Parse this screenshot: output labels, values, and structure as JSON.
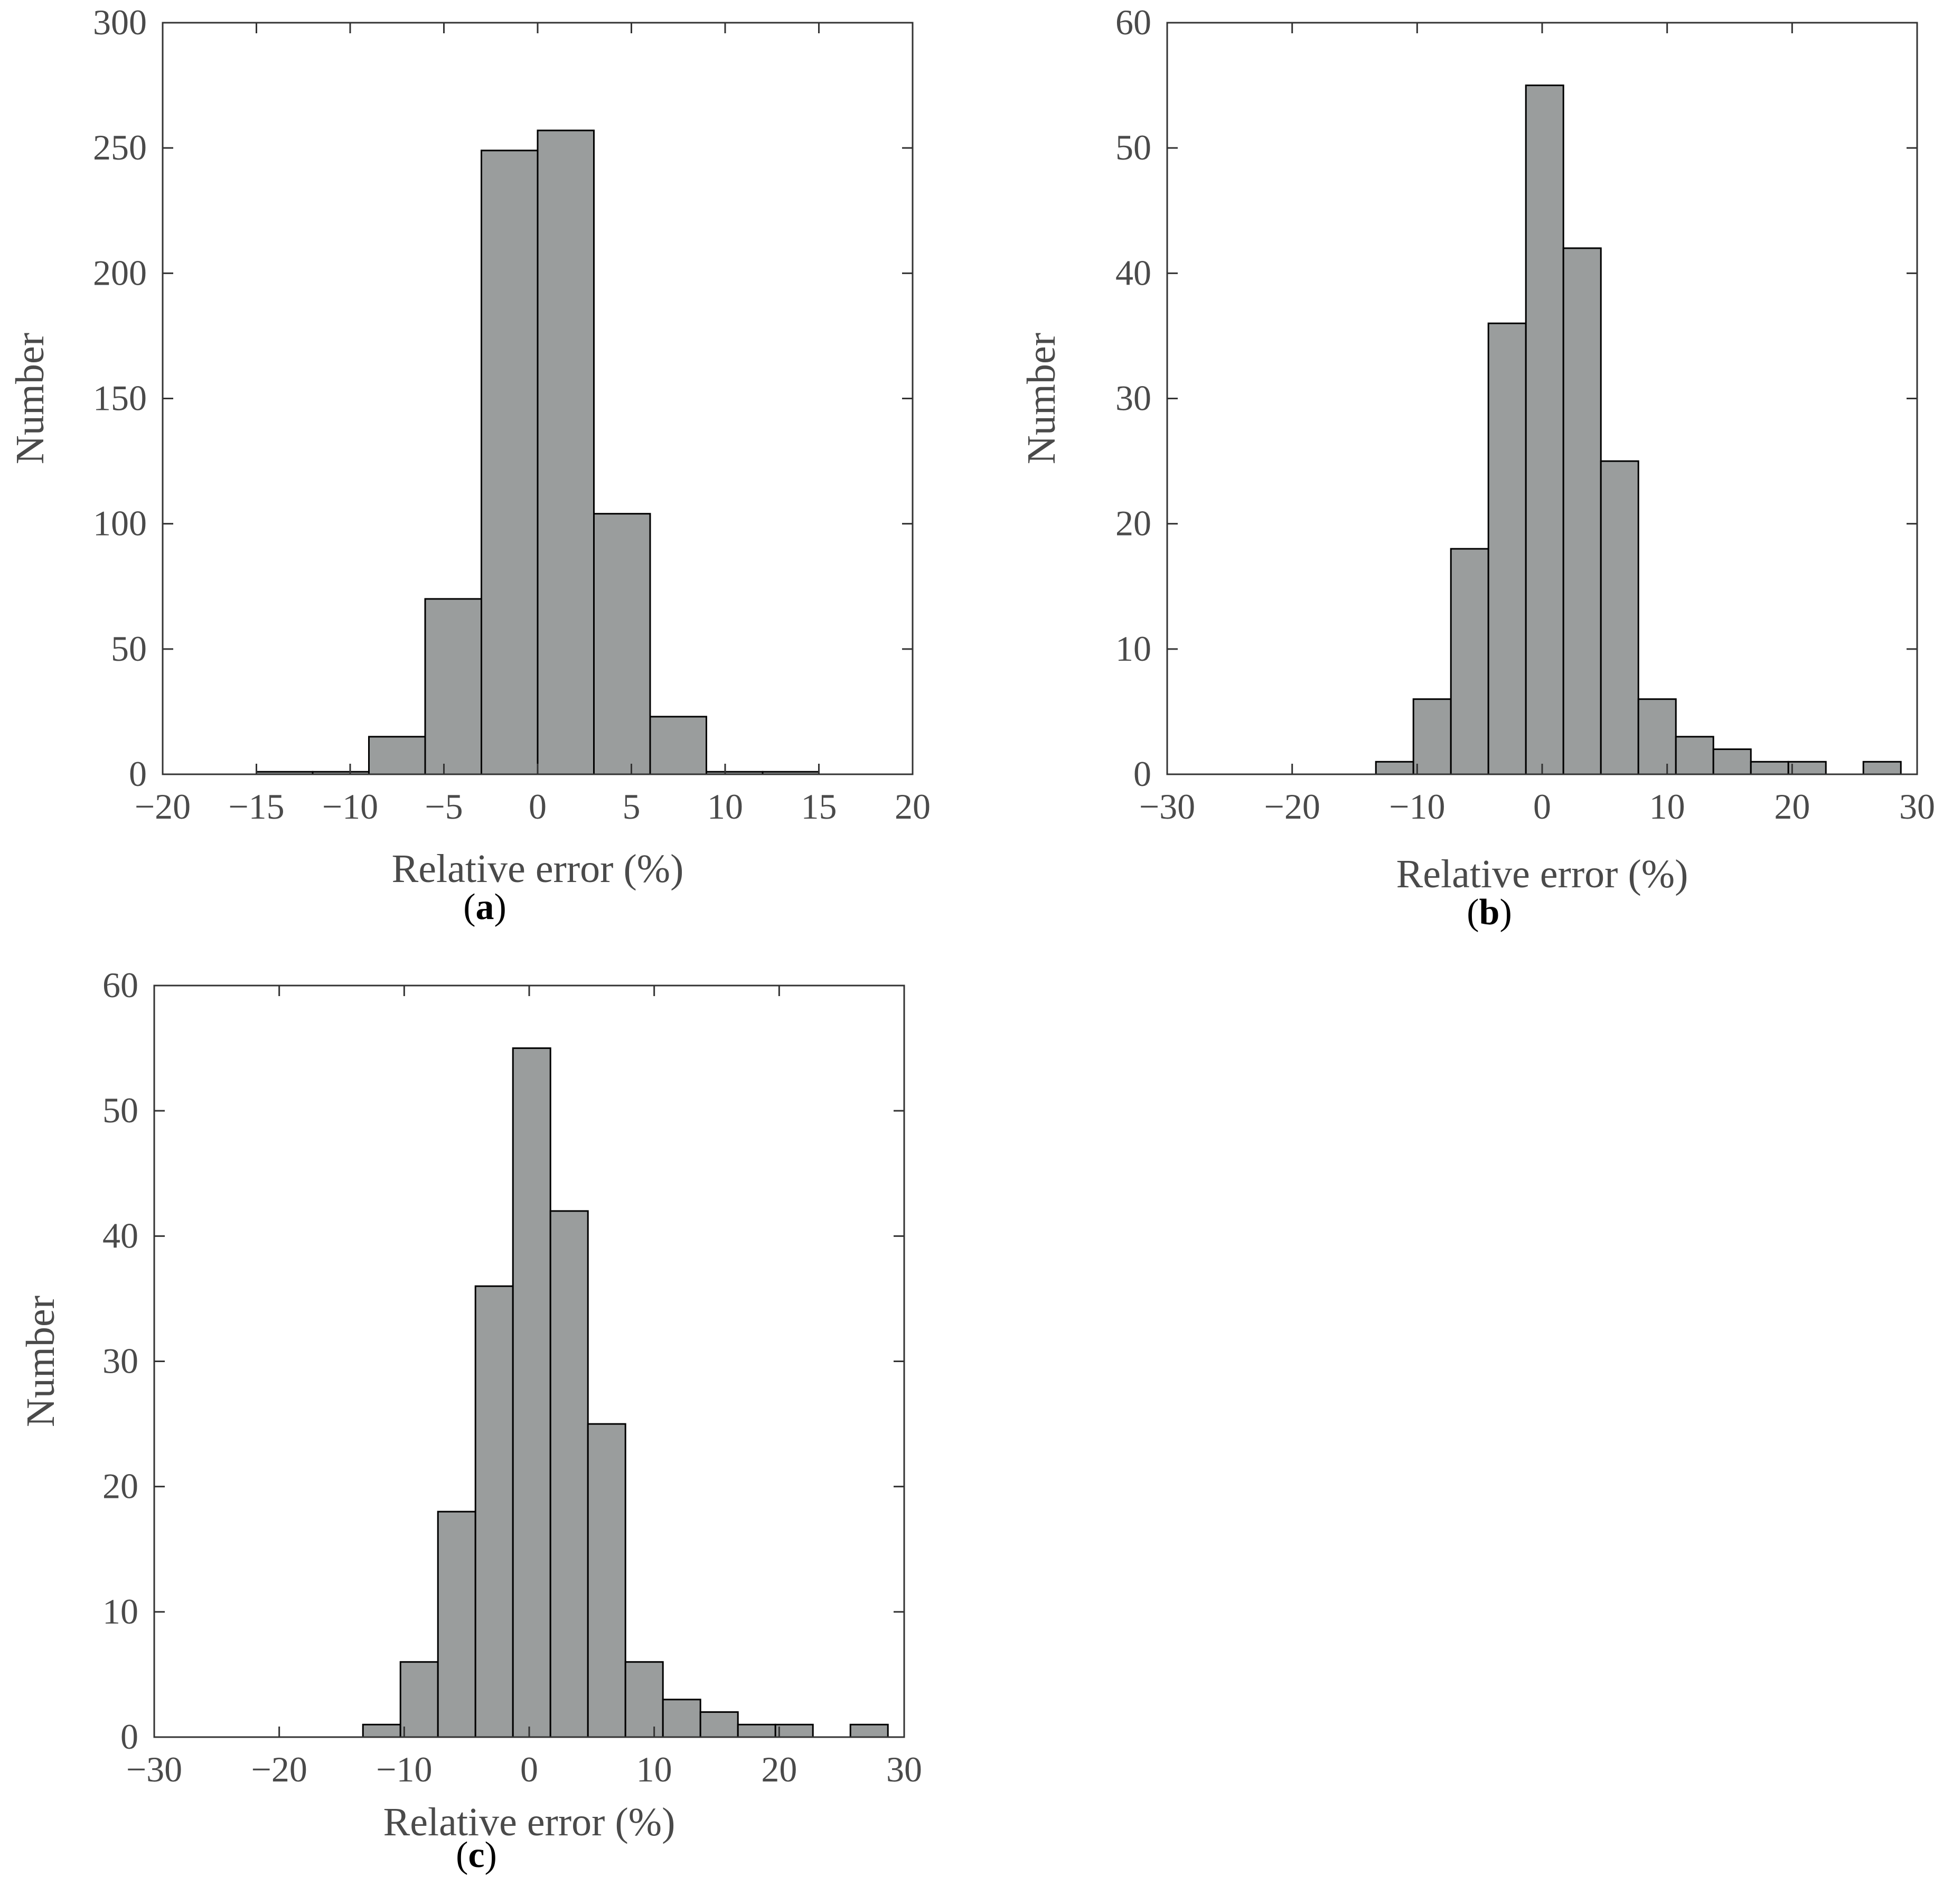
{
  "colors": {
    "bar_fill": "#9a9d9d",
    "bar_edge": "#000000",
    "axis": "#333333",
    "text": "#4a4a4a"
  },
  "chart_data": [
    {
      "id": "a",
      "type": "bar",
      "panel_label": "a",
      "xlabel": "Relative error (%)",
      "ylabel": "Number",
      "xlim": [
        -20,
        20
      ],
      "ylim": [
        0,
        300
      ],
      "xticks": [
        -20,
        -15,
        -10,
        -5,
        0,
        5,
        10,
        15,
        20
      ],
      "xtick_labels": [
        "−20",
        "−15",
        "−10",
        "−5",
        "0",
        "5",
        "10",
        "15",
        "20"
      ],
      "yticks": [
        0,
        50,
        100,
        150,
        200,
        250,
        300
      ],
      "ytick_labels": [
        "0",
        "50",
        "100",
        "150",
        "200",
        "250",
        "300"
      ],
      "bin_edges": [
        -15,
        -12,
        -9,
        -6,
        -3,
        0,
        3,
        6,
        9,
        12,
        15
      ],
      "values": [
        1,
        1,
        15,
        70,
        249,
        257,
        104,
        23,
        1,
        1
      ]
    },
    {
      "id": "b",
      "type": "bar",
      "panel_label": "b",
      "xlabel": "Relative error (%)",
      "ylabel": "Number",
      "xlim": [
        -30,
        30
      ],
      "ylim": [
        0,
        60
      ],
      "xticks": [
        -30,
        -20,
        -10,
        0,
        10,
        20,
        30
      ],
      "xtick_labels": [
        "−30",
        "−20",
        "−10",
        "0",
        "10",
        "20",
        "30"
      ],
      "yticks": [
        0,
        10,
        20,
        30,
        40,
        50,
        60
      ],
      "ytick_labels": [
        "0",
        "10",
        "20",
        "30",
        "40",
        "50",
        "60"
      ],
      "bin_edges": [
        -13.3,
        -10.3,
        -7.3,
        -4.3,
        -1.3,
        1.7,
        4.7,
        7.7,
        10.7,
        13.7,
        16.7,
        19.7,
        22.7,
        25.7,
        28.7
      ],
      "values": [
        1,
        6,
        18,
        36,
        55,
        42,
        25,
        6,
        3,
        2,
        1,
        1,
        0,
        1
      ]
    },
    {
      "id": "c",
      "type": "bar",
      "panel_label": "c",
      "xlabel": "Relative error (%)",
      "ylabel": "Number",
      "xlim": [
        -30,
        30
      ],
      "ylim": [
        0,
        60
      ],
      "xticks": [
        -30,
        -20,
        -10,
        0,
        10,
        20,
        30
      ],
      "xtick_labels": [
        "−30",
        "−20",
        "−10",
        "0",
        "10",
        "20",
        "30"
      ],
      "yticks": [
        0,
        10,
        20,
        30,
        40,
        50,
        60
      ],
      "ytick_labels": [
        "0",
        "10",
        "20",
        "30",
        "40",
        "50",
        "60"
      ],
      "bin_edges": [
        -13.3,
        -10.3,
        -7.3,
        -4.3,
        -1.3,
        1.7,
        4.7,
        7.7,
        10.7,
        13.7,
        16.7,
        19.7,
        22.7,
        25.7,
        28.7
      ],
      "values": [
        1,
        6,
        18,
        36,
        55,
        42,
        25,
        6,
        3,
        2,
        1,
        1,
        0,
        1
      ]
    }
  ]
}
